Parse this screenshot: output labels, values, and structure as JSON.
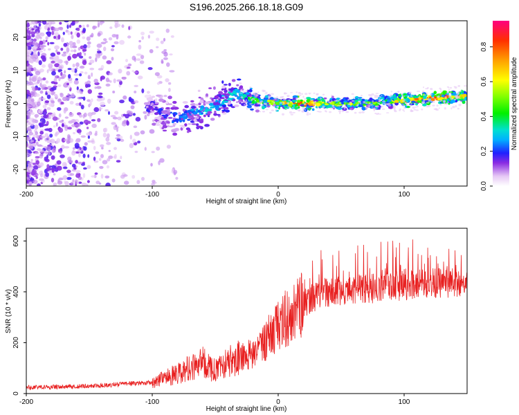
{
  "title": "S196.2025.266.18.18.G09",
  "colors": {
    "snr_line": "#e82020",
    "axis": "#000000",
    "background": "#ffffff"
  },
  "chart_data": [
    {
      "type": "heatmap",
      "name": "spectrogram",
      "xlabel": "Height of straight line (km)",
      "ylabel": "Frequency (Hz)",
      "xlim": [
        -200,
        150
      ],
      "ylim": [
        -25,
        25
      ],
      "xticks": [
        -200,
        -100,
        0,
        100
      ],
      "yticks": [
        -20,
        -10,
        0,
        10,
        20
      ],
      "xtick_labels": [
        "-200",
        "-100",
        "0",
        "100"
      ],
      "ytick_labels": [
        "-20",
        "-10",
        "0",
        "10",
        "20"
      ],
      "colorbar": {
        "label": "Normalized spectral amplitude",
        "range": [
          0,
          0.95
        ],
        "ticks": [
          0.0,
          0.2,
          0.4,
          0.6,
          0.8
        ],
        "tick_labels": [
          "0.0",
          "0.2",
          "0.4",
          "0.6",
          "0.8"
        ]
      },
      "ridge": [
        {
          "x": -100,
          "freq": -1,
          "amp": 0.18
        },
        {
          "x": -80,
          "freq": -5,
          "amp": 0.25
        },
        {
          "x": -60,
          "freq": -2,
          "amp": 0.3
        },
        {
          "x": -50,
          "freq": -1,
          "amp": 0.3
        },
        {
          "x": -40,
          "freq": 2,
          "amp": 0.35
        },
        {
          "x": -32,
          "freq": 3,
          "amp": 0.3
        },
        {
          "x": -20,
          "freq": 1,
          "amp": 0.5
        },
        {
          "x": 0,
          "freq": 0,
          "amp": 0.65
        },
        {
          "x": 20,
          "freq": 0,
          "amp": 0.85
        },
        {
          "x": 40,
          "freq": 0,
          "amp": 0.55
        },
        {
          "x": 60,
          "freq": 0,
          "amp": 0.6
        },
        {
          "x": 80,
          "freq": 0,
          "amp": 0.5
        },
        {
          "x": 100,
          "freq": 1,
          "amp": 0.7
        },
        {
          "x": 120,
          "freq": 1.5,
          "amp": 0.85
        },
        {
          "x": 150,
          "freq": 2,
          "amp": 0.7
        }
      ]
    },
    {
      "type": "line",
      "name": "snr",
      "xlabel": "Height of straight line (km)",
      "ylabel": "SNR (10 * v/v)",
      "xlim": [
        -200,
        150
      ],
      "ylim": [
        0,
        650
      ],
      "xticks": [
        -200,
        -100,
        0,
        100
      ],
      "yticks": [
        0,
        200,
        400,
        600
      ],
      "xtick_labels": [
        "-200",
        "-100",
        "0",
        "100"
      ],
      "ytick_labels": [
        "0",
        "200",
        "400",
        "600"
      ],
      "series": [
        {
          "name": "SNR",
          "x": [
            -200,
            -180,
            -160,
            -140,
            -120,
            -100,
            -90,
            -80,
            -70,
            -60,
            -50,
            -40,
            -30,
            -20,
            -10,
            0,
            10,
            20,
            30,
            40,
            50,
            60,
            80,
            100,
            120,
            140,
            150
          ],
          "values": [
            20,
            22,
            25,
            28,
            35,
            40,
            55,
            70,
            90,
            110,
            80,
            110,
            140,
            150,
            200,
            260,
            300,
            350,
            380,
            390,
            400,
            400,
            410,
            420,
            430,
            430,
            430
          ]
        }
      ]
    }
  ]
}
